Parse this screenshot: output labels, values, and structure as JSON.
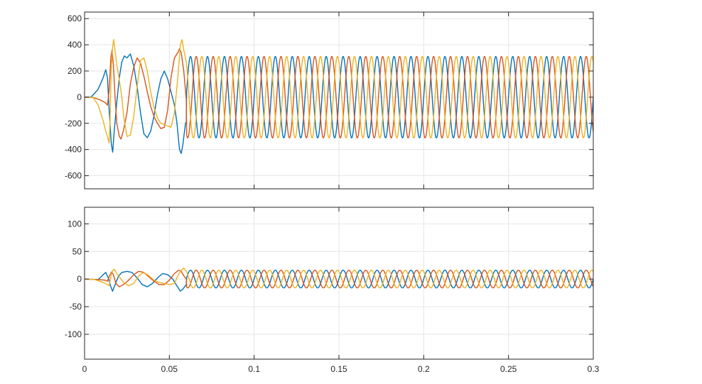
{
  "chart_data": [
    {
      "type": "line",
      "title": "",
      "xlabel": "",
      "ylabel": "",
      "xlim": [
        0,
        0.3
      ],
      "ylim": [
        -700,
        650
      ],
      "grid": true,
      "x_ticks": [
        {
          "value": 0,
          "label": "0"
        },
        {
          "value": 0.05,
          "label": "0.05"
        },
        {
          "value": 0.1,
          "label": "0.1"
        },
        {
          "value": 0.15,
          "label": "0.15"
        },
        {
          "value": 0.2,
          "label": "0.2"
        },
        {
          "value": 0.25,
          "label": "0.25"
        },
        {
          "value": 0.3,
          "label": "0.3"
        }
      ],
      "y_ticks": [
        {
          "value": 600,
          "label": "600"
        },
        {
          "value": 400,
          "label": "400"
        },
        {
          "value": 200,
          "label": "200"
        },
        {
          "value": 0,
          "label": "0"
        },
        {
          "value": -200,
          "label": "-200"
        },
        {
          "value": -400,
          "label": "-400"
        },
        {
          "value": -600,
          "label": "-600"
        }
      ],
      "steady_state": {
        "amplitude": 311,
        "frequency_hz": 100,
        "start_time": 0.06
      },
      "series": [
        {
          "color": "#0072BD",
          "phase_deg": 0,
          "transient": [
            [
              0,
              0
            ],
            [
              0.004,
              2
            ],
            [
              0.008,
              60
            ],
            [
              0.011,
              150
            ],
            [
              0.0125,
              210
            ],
            [
              0.0135,
              150
            ],
            [
              0.0145,
              -100
            ],
            [
              0.0158,
              -360
            ],
            [
              0.0166,
              -420
            ],
            [
              0.0175,
              -260
            ],
            [
              0.019,
              -40
            ],
            [
              0.0205,
              150
            ],
            [
              0.022,
              270
            ],
            [
              0.0235,
              315
            ],
            [
              0.025,
              300
            ],
            [
              0.027,
              330
            ],
            [
              0.029,
              240
            ],
            [
              0.031,
              80
            ],
            [
              0.033,
              -120
            ],
            [
              0.035,
              -280
            ],
            [
              0.037,
              -310
            ],
            [
              0.039,
              -260
            ],
            [
              0.041,
              -140
            ],
            [
              0.043,
              20
            ],
            [
              0.045,
              140
            ],
            [
              0.047,
              200
            ],
            [
              0.049,
              140
            ],
            [
              0.051,
              40
            ],
            [
              0.053,
              -60
            ],
            [
              0.0545,
              -200
            ],
            [
              0.056,
              -400
            ],
            [
              0.057,
              -430
            ],
            [
              0.058,
              -360
            ],
            [
              0.0595,
              -200
            ],
            [
              0.06,
              -190
            ]
          ]
        },
        {
          "color": "#D95319",
          "phase_deg": -120,
          "transient": [
            [
              0,
              0
            ],
            [
              0.005,
              -2
            ],
            [
              0.009,
              -20
            ],
            [
              0.012,
              -40
            ],
            [
              0.0135,
              -60
            ],
            [
              0.0145,
              50
            ],
            [
              0.0155,
              300
            ],
            [
              0.0162,
              360
            ],
            [
              0.017,
              250
            ],
            [
              0.018,
              0
            ],
            [
              0.019,
              -200
            ],
            [
              0.0205,
              -300
            ],
            [
              0.0215,
              -320
            ],
            [
              0.023,
              -250
            ],
            [
              0.025,
              -120
            ],
            [
              0.027,
              100
            ],
            [
              0.029,
              230
            ],
            [
              0.031,
              300
            ],
            [
              0.033,
              260
            ],
            [
              0.035,
              160
            ],
            [
              0.037,
              40
            ],
            [
              0.039,
              -70
            ],
            [
              0.041,
              -150
            ],
            [
              0.043,
              -200
            ],
            [
              0.045,
              -240
            ],
            [
              0.047,
              -230
            ],
            [
              0.049,
              -100
            ],
            [
              0.051,
              150
            ],
            [
              0.053,
              300
            ],
            [
              0.055,
              340
            ],
            [
              0.056,
              370
            ],
            [
              0.057,
              340
            ],
            [
              0.0585,
              200
            ],
            [
              0.06,
              -20
            ]
          ]
        },
        {
          "color": "#EDB120",
          "phase_deg": 120,
          "transient": [
            [
              0,
              0
            ],
            [
              0.005,
              -2
            ],
            [
              0.008,
              -60
            ],
            [
              0.011,
              -180
            ],
            [
              0.0125,
              -260
            ],
            [
              0.0135,
              -300
            ],
            [
              0.0145,
              -350
            ],
            [
              0.015,
              -200
            ],
            [
              0.0157,
              200
            ],
            [
              0.0165,
              380
            ],
            [
              0.0172,
              440
            ],
            [
              0.018,
              350
            ],
            [
              0.019,
              250
            ],
            [
              0.0205,
              130
            ],
            [
              0.022,
              0
            ],
            [
              0.023,
              -140
            ],
            [
              0.025,
              -300
            ],
            [
              0.027,
              -290
            ],
            [
              0.029,
              -150
            ],
            [
              0.031,
              80
            ],
            [
              0.033,
              280
            ],
            [
              0.035,
              300
            ],
            [
              0.037,
              200
            ],
            [
              0.039,
              40
            ],
            [
              0.041,
              -80
            ],
            [
              0.043,
              -160
            ],
            [
              0.045,
              -200
            ],
            [
              0.047,
              -210
            ],
            [
              0.049,
              -220
            ],
            [
              0.051,
              -230
            ],
            [
              0.053,
              -120
            ],
            [
              0.055,
              150
            ],
            [
              0.0565,
              400
            ],
            [
              0.0575,
              440
            ],
            [
              0.0585,
              360
            ],
            [
              0.06,
              270
            ]
          ]
        }
      ]
    },
    {
      "type": "line",
      "title": "",
      "xlabel": "",
      "ylabel": "",
      "xlim": [
        0,
        0.3
      ],
      "ylim": [
        -145,
        130
      ],
      "grid": true,
      "x_ticks": [
        {
          "value": 0,
          "label": "0"
        },
        {
          "value": 0.05,
          "label": "0.05"
        },
        {
          "value": 0.1,
          "label": "0.1"
        },
        {
          "value": 0.15,
          "label": "0.15"
        },
        {
          "value": 0.2,
          "label": "0.2"
        },
        {
          "value": 0.25,
          "label": "0.25"
        },
        {
          "value": 0.3,
          "label": "0.3"
        }
      ],
      "y_ticks": [
        {
          "value": 100,
          "label": "100"
        },
        {
          "value": 50,
          "label": "50"
        },
        {
          "value": 0,
          "label": "0"
        },
        {
          "value": -50,
          "label": "-50"
        },
        {
          "value": -100,
          "label": "-100"
        }
      ],
      "steady_state": {
        "amplitude": 16,
        "frequency_hz": 100,
        "start_time": 0.06
      },
      "series": [
        {
          "color": "#0072BD",
          "phase_deg": 0,
          "transient": [
            [
              0,
              0
            ],
            [
              0.008,
              -1
            ],
            [
              0.011,
              8
            ],
            [
              0.0125,
              12
            ],
            [
              0.014,
              2
            ],
            [
              0.0155,
              -14
            ],
            [
              0.0165,
              -22
            ],
            [
              0.018,
              -10
            ],
            [
              0.02,
              5
            ],
            [
              0.022,
              12
            ],
            [
              0.025,
              14
            ],
            [
              0.028,
              12
            ],
            [
              0.031,
              2
            ],
            [
              0.034,
              -10
            ],
            [
              0.037,
              -14
            ],
            [
              0.04,
              -8
            ],
            [
              0.043,
              2
            ],
            [
              0.046,
              10
            ],
            [
              0.049,
              8
            ],
            [
              0.052,
              0
            ],
            [
              0.054,
              -10
            ],
            [
              0.0565,
              -22
            ],
            [
              0.058,
              -18
            ],
            [
              0.06,
              -10
            ]
          ]
        },
        {
          "color": "#D95319",
          "phase_deg": -120,
          "transient": [
            [
              0,
              0
            ],
            [
              0.008,
              -1
            ],
            [
              0.012,
              -2
            ],
            [
              0.0135,
              -4
            ],
            [
              0.015,
              8
            ],
            [
              0.016,
              13
            ],
            [
              0.017,
              8
            ],
            [
              0.0185,
              -8
            ],
            [
              0.0205,
              -14
            ],
            [
              0.023,
              -10
            ],
            [
              0.026,
              -2
            ],
            [
              0.029,
              8
            ],
            [
              0.032,
              14
            ],
            [
              0.035,
              12
            ],
            [
              0.038,
              4
            ],
            [
              0.041,
              -4
            ],
            [
              0.044,
              -10
            ],
            [
              0.047,
              -10
            ],
            [
              0.05,
              -2
            ],
            [
              0.053,
              10
            ],
            [
              0.0555,
              16
            ],
            [
              0.057,
              14
            ],
            [
              0.0585,
              6
            ],
            [
              0.06,
              0
            ]
          ]
        },
        {
          "color": "#EDB120",
          "phase_deg": 120,
          "transient": [
            [
              0,
              0
            ],
            [
              0.006,
              -1
            ],
            [
              0.01,
              -5
            ],
            [
              0.013,
              -9
            ],
            [
              0.0145,
              -12
            ],
            [
              0.0155,
              4
            ],
            [
              0.0165,
              15
            ],
            [
              0.0175,
              18
            ],
            [
              0.019,
              10
            ],
            [
              0.021,
              2
            ],
            [
              0.023,
              -6
            ],
            [
              0.026,
              -12
            ],
            [
              0.029,
              -8
            ],
            [
              0.032,
              6
            ],
            [
              0.035,
              12
            ],
            [
              0.038,
              6
            ],
            [
              0.041,
              -2
            ],
            [
              0.044,
              -6
            ],
            [
              0.047,
              -8
            ],
            [
              0.05,
              -10
            ],
            [
              0.053,
              -8
            ],
            [
              0.055,
              6
            ],
            [
              0.057,
              16
            ],
            [
              0.0585,
              20
            ],
            [
              0.06,
              14
            ]
          ]
        }
      ]
    }
  ]
}
